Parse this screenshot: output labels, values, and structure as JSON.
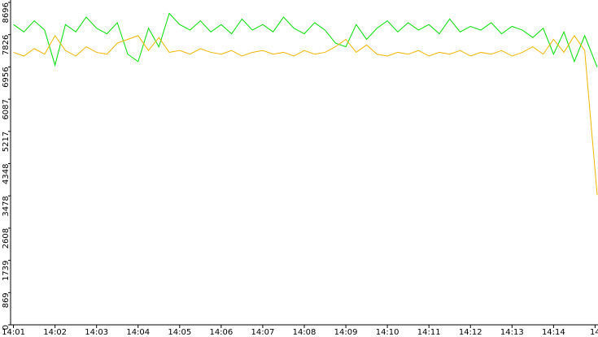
{
  "chart_data": {
    "type": "line",
    "x": [
      1,
      1.25,
      1.5,
      1.75,
      2,
      2.25,
      2.5,
      2.75,
      3,
      3.25,
      3.5,
      3.75,
      4,
      4.25,
      4.5,
      4.75,
      5,
      5.25,
      5.5,
      5.75,
      6,
      6.25,
      6.5,
      6.75,
      7,
      7.25,
      7.5,
      7.75,
      8,
      8.25,
      8.5,
      8.75,
      9,
      9.25,
      9.5,
      9.75,
      10,
      10.25,
      10.5,
      10.75,
      11,
      11.25,
      11.5,
      11.75,
      12,
      12.25,
      12.5,
      12.75,
      13,
      13.25,
      13.5,
      13.75,
      14,
      14.25,
      14.5,
      14.75,
      15.05
    ],
    "series": [
      {
        "color": "#00dd00",
        "values": [
          8100,
          7900,
          8200,
          7950,
          7000,
          8100,
          7900,
          8300,
          8000,
          7850,
          8150,
          7300,
          7100,
          8000,
          7500,
          8400,
          8100,
          7950,
          8200,
          7900,
          8100,
          7850,
          8250,
          7950,
          8100,
          7900,
          8300,
          8000,
          7850,
          8150,
          7950,
          7600,
          7500,
          8100,
          7700,
          8000,
          8200,
          7900,
          8150,
          7950,
          8100,
          7850,
          8250,
          7900,
          8050,
          7950,
          8150,
          7850,
          8050,
          7950,
          7750,
          8000,
          7300,
          7900,
          7100,
          7800,
          6950
        ]
      },
      {
        "color": "#f0b400",
        "values": [
          7350,
          7250,
          7450,
          7300,
          7800,
          7400,
          7250,
          7500,
          7350,
          7300,
          7600,
          7700,
          7800,
          7400,
          7750,
          7350,
          7400,
          7300,
          7450,
          7350,
          7300,
          7400,
          7250,
          7350,
          7400,
          7300,
          7350,
          7250,
          7400,
          7300,
          7350,
          7500,
          7700,
          7350,
          7550,
          7300,
          7250,
          7350,
          7300,
          7400,
          7250,
          7350,
          7300,
          7400,
          7250,
          7350,
          7300,
          7400,
          7250,
          7350,
          7500,
          7300,
          7700,
          7350,
          7800,
          7400,
          3500
        ]
      }
    ],
    "xlim": [
      0.93,
      15.07
    ],
    "xticks": [
      {
        "value": 1,
        "label": "14:01"
      },
      {
        "value": 2,
        "label": "14:02"
      },
      {
        "value": 3,
        "label": "14:03"
      },
      {
        "value": 4,
        "label": "14:04"
      },
      {
        "value": 5,
        "label": "14:05"
      },
      {
        "value": 6,
        "label": "14:06"
      },
      {
        "value": 7,
        "label": "14:07"
      },
      {
        "value": 8,
        "label": "14:08"
      },
      {
        "value": 9,
        "label": "14:09"
      },
      {
        "value": 10,
        "label": "14:10"
      },
      {
        "value": 11,
        "label": "14:11"
      },
      {
        "value": 12,
        "label": "14:12"
      },
      {
        "value": 13,
        "label": "14:13"
      },
      {
        "value": 14,
        "label": "14:14"
      },
      {
        "value": 15,
        "label": "14"
      }
    ],
    "ylim": [
      0,
      8696
    ],
    "yticks": [
      0,
      869,
      1739,
      2608,
      3478,
      4348,
      5217,
      6087,
      6956,
      7826,
      8696
    ]
  }
}
